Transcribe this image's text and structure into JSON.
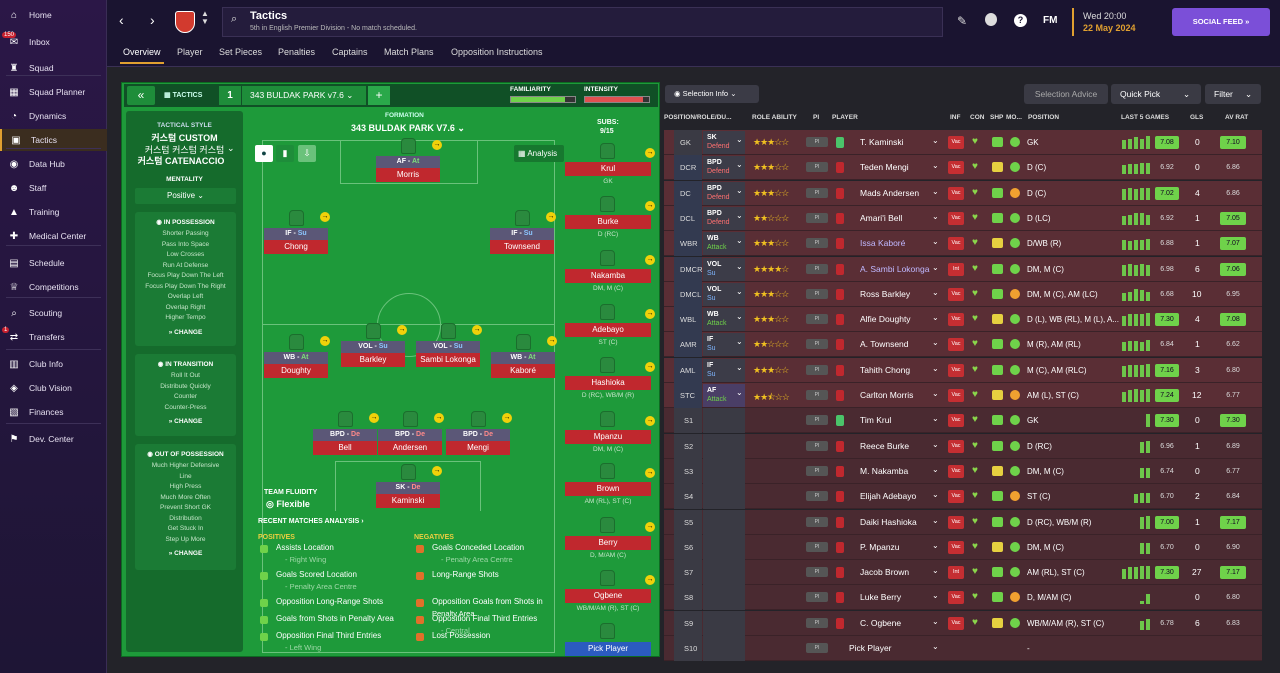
{
  "sidebar": {
    "items": [
      {
        "label": "Home",
        "icon": "home-icon",
        "glyph": "⌂"
      },
      {
        "label": "Inbox",
        "icon": "inbox-icon",
        "glyph": "✉",
        "badge": "150"
      },
      {
        "label": "Squad",
        "icon": "shirt-icon",
        "glyph": "♜"
      },
      {
        "label": "Squad Planner",
        "icon": "planner-icon",
        "glyph": "▦"
      },
      {
        "label": "Dynamics",
        "icon": "dynamics-icon",
        "glyph": "◔"
      },
      {
        "label": "Tactics",
        "icon": "tactics-icon",
        "glyph": "▣",
        "active": true
      },
      {
        "label": "Data Hub",
        "icon": "data-hub-icon",
        "glyph": "◉"
      },
      {
        "label": "Staff",
        "icon": "staff-icon",
        "glyph": "☻"
      },
      {
        "label": "Training",
        "icon": "training-icon",
        "glyph": "▲"
      },
      {
        "label": "Medical Center",
        "icon": "medical-icon",
        "glyph": "✚"
      },
      {
        "label": "Schedule",
        "icon": "schedule-icon",
        "glyph": "▤"
      },
      {
        "label": "Competitions",
        "icon": "competitions-icon",
        "glyph": "♕"
      },
      {
        "label": "Scouting",
        "icon": "scouting-icon",
        "glyph": "⌕"
      },
      {
        "label": "Transfers",
        "icon": "transfers-icon",
        "glyph": "⇄",
        "badge": "1"
      },
      {
        "label": "Club Info",
        "icon": "club-info-icon",
        "glyph": "▥"
      },
      {
        "label": "Club Vision",
        "icon": "club-vision-icon",
        "glyph": "◈"
      },
      {
        "label": "Finances",
        "icon": "finances-icon",
        "glyph": "▧"
      },
      {
        "label": "Dev. Center",
        "icon": "dev-center-icon",
        "glyph": "⚑"
      }
    ]
  },
  "header": {
    "title": "Tactics",
    "subtitle": "5th in English Premier Division - No match scheduled.",
    "time": "Wed 20:00",
    "date": "22 May 2024",
    "social_feed": "SOCIAL FEED",
    "fm": "FM"
  },
  "tabs": [
    "Overview",
    "Player",
    "Set Pieces",
    "Penalties",
    "Captains",
    "Match Plans",
    "Opposition Instructions"
  ],
  "tactic": {
    "label": "TACTICS",
    "slot": "1",
    "name": "343 BULDAK PARK v7.6",
    "familiarity_label": "FAMILIARITY",
    "intensity_label": "INTENSITY",
    "familiarity": 0.85,
    "intensity": 0.9,
    "formation_label": "FORMATION",
    "formation_name": "343 BULDAK PARK V7.6",
    "subs_label": "SUBS:",
    "subs_count": "9/15",
    "analysis": "Analysis"
  },
  "style": {
    "title": "TACTICAL STYLE",
    "line1": "커스텀 CUSTOM",
    "line2": "커스텀 커스텀 커스텀",
    "line3": "커스텀 CATENACCIO",
    "mentality_label": "MENTALITY",
    "mentality": "Positive",
    "in_possession": "IN POSSESSION",
    "in_possession_items": [
      "Shorter Passing",
      "Pass Into Space",
      "Low Crosses",
      "Run At Defense",
      "Focus Play Down The Left",
      "Focus Play Down The Right",
      "Overlap Left",
      "Overlap Right",
      "Higher Tempo"
    ],
    "in_transition": "IN TRANSITION",
    "in_transition_items": [
      "Roll It Out",
      "Distribute Quickly",
      "Counter",
      "Counter-Press"
    ],
    "out_of_possession": "OUT OF POSSESSION",
    "out_of_possession_items": [
      "Much Higher Defensive",
      "Line",
      "High Press",
      "Much More Often",
      "Prevent Short GK",
      "Distribution",
      "Get Stuck In",
      "Step Up More"
    ],
    "change": "CHANGE"
  },
  "pitch_players": [
    {
      "role": "AF",
      "duty": "At",
      "name": "Morris"
    },
    {
      "role": "IF",
      "duty": "Su",
      "name": "Chong"
    },
    {
      "role": "IF",
      "duty": "Su",
      "name": "Townsend"
    },
    {
      "role": "WB",
      "duty": "At",
      "name": "Doughty"
    },
    {
      "role": "VOL",
      "duty": "Su",
      "name": "Barkley"
    },
    {
      "role": "VOL",
      "duty": "Su",
      "name": "Sambi Lokonga"
    },
    {
      "role": "WB",
      "duty": "At",
      "name": "Kaboré"
    },
    {
      "role": "BPD",
      "duty": "De",
      "name": "Bell"
    },
    {
      "role": "BPD",
      "duty": "De",
      "name": "Andersen"
    },
    {
      "role": "BPD",
      "duty": "De",
      "name": "Mengi"
    },
    {
      "role": "SK",
      "duty": "De",
      "name": "Kaminski"
    }
  ],
  "subs": [
    {
      "name": "Krul",
      "pos": "GK"
    },
    {
      "name": "Burke",
      "pos": "D (RC)"
    },
    {
      "name": "Nakamba",
      "pos": "DM, M (C)"
    },
    {
      "name": "Adebayo",
      "pos": "ST (C)"
    },
    {
      "name": "Hashioka",
      "pos": "D (RC), WB/M (R)"
    },
    {
      "name": "Mpanzu",
      "pos": "DM, M (C)"
    },
    {
      "name": "Brown",
      "pos": "AM (RL), ST (C)"
    },
    {
      "name": "Berry",
      "pos": "D, M/AM (C)"
    },
    {
      "name": "Ogbene",
      "pos": "WB/M/AM (R), ST (C)"
    },
    {
      "name": "Pick Player",
      "pos": ""
    }
  ],
  "fluidity": {
    "label": "TEAM FLUIDITY",
    "value": "Flexible"
  },
  "analysis": {
    "title": "RECENT MATCHES ANALYSIS ›",
    "positives_label": "POSITIVES",
    "negatives_label": "NEGATIVES",
    "positives": [
      {
        "text": "Assists Location",
        "sub": "- Right Wing"
      },
      {
        "text": "Goals Scored Location",
        "sub": "- Penalty Area Centre"
      },
      {
        "text": "Opposition Long-Range Shots",
        "sub": ""
      },
      {
        "text": "Goals from Shots in Penalty Area",
        "sub": ""
      },
      {
        "text": "Opposition Final Third Entries",
        "sub": "- Left Wing"
      }
    ],
    "negatives": [
      {
        "text": "Goals Conceded Location",
        "sub": "- Penalty Area Centre"
      },
      {
        "text": "Long-Range Shots",
        "sub": ""
      },
      {
        "text": "Opposition Goals from Shots in",
        "sub": "Penalty Area"
      },
      {
        "text": "Opposition Final Third Entries",
        "sub": "- Central"
      },
      {
        "text": "Lost Possession",
        "sub": ""
      }
    ]
  },
  "right_toolbar": {
    "selection_info": "Selection Info",
    "selection_advice": "Selection Advice",
    "quick_pick": "Quick Pick",
    "filter": "Filter"
  },
  "table_headers": {
    "pos": "POSITION/ROLE/DU...",
    "role_ability": "ROLE ABILITY",
    "pi": "PI",
    "player": "PLAYER",
    "inf": "INF",
    "con": "CON",
    "shp": "SHP",
    "mo": "MO...",
    "position": "POSITION",
    "last5": "LAST 5 GAMES",
    "gls": "GLS",
    "avrat": "AV RAT"
  },
  "rows": [
    {
      "slot": "GK",
      "role": "SK",
      "duty": "Defend",
      "stars": 3,
      "name": "T. Kaminski",
      "inf": "Vac",
      "position": "GK",
      "rating": "7.08",
      "gls": "0",
      "av": "7.10",
      "hl": true
    },
    {
      "slot": "DCR",
      "role": "BPD",
      "duty": "Defend",
      "stars": 3,
      "name": "Teden Mengi",
      "inf": "Vac",
      "position": "D (C)",
      "rating": "6.92",
      "gls": "0",
      "av": "6.86",
      "hl": false
    },
    {
      "slot": "DC",
      "role": "BPD",
      "duty": "Defend",
      "stars": 3,
      "name": "Mads Andersen",
      "inf": "Vac",
      "position": "D (C)",
      "rating": "7.02",
      "gls": "4",
      "av": "6.86",
      "hl": true
    },
    {
      "slot": "DCL",
      "role": "BPD",
      "duty": "Defend",
      "stars": 2,
      "name": "Amari'i Bell",
      "inf": "Vac",
      "position": "D (LC)",
      "rating": "6.92",
      "gls": "1",
      "av": "7.05",
      "hl": false
    },
    {
      "slot": "WBR",
      "role": "WB",
      "duty": "Attack",
      "stars": 3,
      "name": "Issa Kaboré",
      "inf": "Vac",
      "position": "D/WB (R)",
      "rating": "6.88",
      "gls": "1",
      "av": "7.07",
      "hl": false
    },
    {
      "slot": "DMCR",
      "role": "VOL",
      "duty": "Su",
      "stars": 4,
      "name": "A. Sambi Lokonga",
      "inf": "Int",
      "position": "DM, M (C)",
      "rating": "6.98",
      "gls": "6",
      "av": "7.06",
      "hl": false
    },
    {
      "slot": "DMCL",
      "role": "VOL",
      "duty": "Su",
      "stars": 3,
      "name": "Ross Barkley",
      "inf": "Vac",
      "position": "DM, M (C), AM (LC)",
      "rating": "6.68",
      "gls": "10",
      "av": "6.95",
      "hl": false
    },
    {
      "slot": "WBL",
      "role": "WB",
      "duty": "Attack",
      "stars": 3,
      "name": "Alfie Doughty",
      "inf": "Vac",
      "position": "D (L), WB (RL), M (L), A...",
      "rating": "7.30",
      "gls": "4",
      "av": "7.08",
      "hl": true
    },
    {
      "slot": "AMR",
      "role": "IF",
      "duty": "Su",
      "stars": 2,
      "name": "A. Townsend",
      "inf": "Vac",
      "position": "M (R), AM (RL)",
      "rating": "6.84",
      "gls": "1",
      "av": "6.62",
      "hl": false
    },
    {
      "slot": "AML",
      "role": "IF",
      "duty": "Su",
      "stars": 3,
      "name": "Tahith Chong",
      "inf": "Vac",
      "position": "M (C), AM (RLC)",
      "rating": "7.16",
      "gls": "3",
      "av": "6.80",
      "hl": true
    },
    {
      "slot": "STC",
      "role": "AF",
      "duty": "Attack",
      "stars": 2.5,
      "name": "Carlton Morris",
      "inf": "Vac",
      "position": "AM (L), ST (C)",
      "rating": "7.24",
      "gls": "12",
      "av": "6.77",
      "hl": true
    },
    {
      "slot": "S1",
      "role": "",
      "duty": "",
      "stars": 0,
      "name": "Tim Krul",
      "inf": "Vac",
      "position": "GK",
      "rating": "7.30",
      "gls": "0",
      "av": "7.30",
      "hl": true
    },
    {
      "slot": "S2",
      "role": "",
      "duty": "",
      "stars": 0,
      "name": "Reece Burke",
      "inf": "Vac",
      "position": "D (RC)",
      "rating": "6.96",
      "gls": "1",
      "av": "6.89",
      "hl": false
    },
    {
      "slot": "S3",
      "role": "",
      "duty": "",
      "stars": 0,
      "name": "M. Nakamba",
      "inf": "Vac",
      "position": "DM, M (C)",
      "rating": "6.74",
      "gls": "0",
      "av": "6.77",
      "hl": false
    },
    {
      "slot": "S4",
      "role": "",
      "duty": "",
      "stars": 0,
      "name": "Elijah Adebayo",
      "inf": "Vac",
      "position": "ST (C)",
      "rating": "6.70",
      "gls": "2",
      "av": "6.84",
      "hl": false
    },
    {
      "slot": "S5",
      "role": "",
      "duty": "",
      "stars": 0,
      "name": "Daiki Hashioka",
      "inf": "Vac",
      "position": "D (RC), WB/M (R)",
      "rating": "7.00",
      "gls": "1",
      "av": "7.17",
      "hl": true
    },
    {
      "slot": "S6",
      "role": "",
      "duty": "",
      "stars": 0,
      "name": "P. Mpanzu",
      "inf": "Vac",
      "position": "DM, M (C)",
      "rating": "6.70",
      "gls": "0",
      "av": "6.90",
      "hl": false
    },
    {
      "slot": "S7",
      "role": "",
      "duty": "",
      "stars": 0,
      "name": "Jacob Brown",
      "inf": "Int",
      "position": "AM (RL), ST (C)",
      "rating": "7.30",
      "gls": "27",
      "av": "7.17",
      "hl": true
    },
    {
      "slot": "S8",
      "role": "",
      "duty": "",
      "stars": 0,
      "name": "Luke Berry",
      "inf": "Vac",
      "position": "D, M/AM (C)",
      "rating": "",
      "gls": "0",
      "av": "6.80",
      "hl": false
    },
    {
      "slot": "S9",
      "role": "",
      "duty": "",
      "stars": 0,
      "name": "C. Ogbene",
      "inf": "Vac",
      "position": "WB/M/AM (R), ST (C)",
      "rating": "6.78",
      "gls": "6",
      "av": "6.83",
      "hl": false
    },
    {
      "slot": "S10",
      "role": "",
      "duty": "",
      "stars": 0,
      "name": "Pick Player",
      "inf": "",
      "position": "-",
      "rating": "",
      "gls": "",
      "av": "",
      "hl": false
    }
  ]
}
